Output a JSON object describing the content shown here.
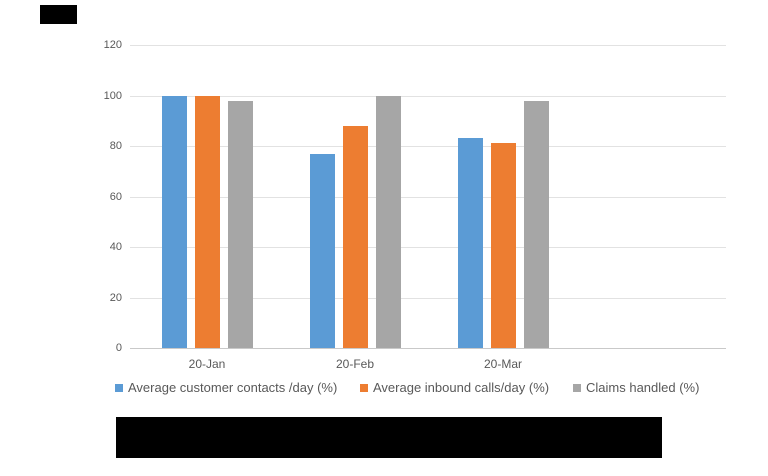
{
  "page": {
    "background": "#FFFFFF"
  },
  "chart_data": {
    "type": "bar",
    "title": "",
    "xlabel": "",
    "ylabel": "",
    "categories": [
      "20-Jan",
      "20-Feb",
      "20-Mar"
    ],
    "series": [
      {
        "name": "Average customer contacts /day (%)",
        "color": "#5B9BD5",
        "values": [
          100,
          77,
          83
        ]
      },
      {
        "name": "Average inbound calls/day (%)",
        "color": "#ED7D31",
        "values": [
          100,
          88,
          81
        ]
      },
      {
        "name": "Claims handled (%)",
        "color": "#A6A6A6",
        "values": [
          98,
          100,
          98
        ]
      }
    ],
    "ylim": [
      0,
      120
    ],
    "yticks": [
      0,
      20,
      40,
      60,
      80,
      100,
      120
    ],
    "grid": true,
    "legend_position": "bottom",
    "gridline_color": "#E2E2E2",
    "axis_line_color": "#C9C9C9",
    "tick_text_color": "#595959"
  },
  "redactions": {
    "color": "#000000"
  }
}
